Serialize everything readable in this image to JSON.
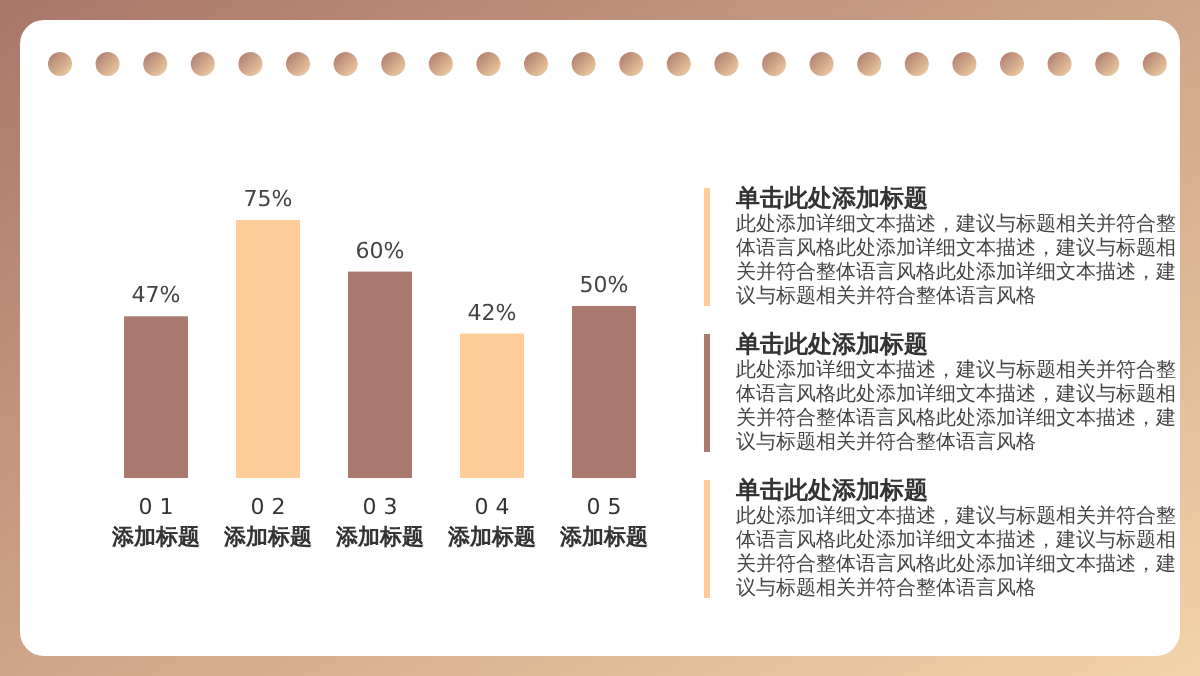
{
  "chart_data": {
    "type": "bar",
    "categories": [
      "0 1\n添加标题",
      "0 2\n添加标题",
      "0 3\n添加标题",
      "0 4\n添加标题",
      "0 5\n添加标题"
    ],
    "values": [
      47,
      75,
      60,
      42,
      50
    ],
    "value_labels": [
      "47%",
      "75%",
      "60%",
      "42%",
      "50%"
    ],
    "colors": [
      "#a97b6e",
      "#fecc98",
      "#a97b6e",
      "#fecc98",
      "#a97b6e"
    ],
    "annotations": [
      "单击此处添加标题",
      "此处添加详细文本描述，建议与标题相关并符合整体语言风格此处添加详细文本描述，建议与标题相关并符合整体语言风格此处添加详细文本描述，建议与标题相关并符合整体语言风格",
      "单击此处添加标题",
      "此处添加详细文本描述，建议与标题相关并符合整体语言风格此处添加详细文本描述，建议与标题相关并符合整体语言风格此处添加详细文本描述，建议与标题相关并符合整体语言风格",
      "单击此处添加标题",
      "此处添加详细文本描述，建议与标题相关并符合整体语言风格此处添加详细文本描述，建议与标题相关并符合整体语言风格此处添加详细文本描述，建议与标题相关并符合整体语言风格"
    ]
  }
}
